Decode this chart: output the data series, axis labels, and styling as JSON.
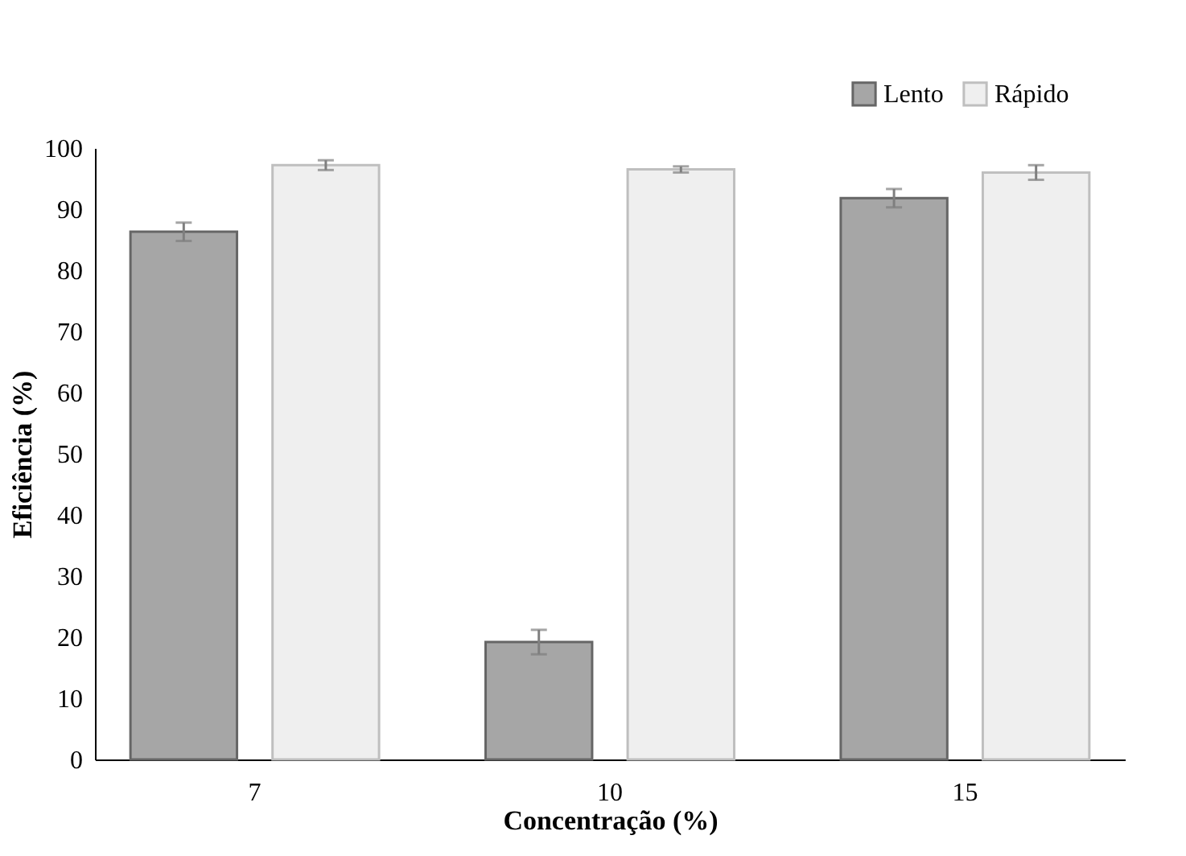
{
  "chart_data": {
    "type": "bar",
    "xlabel": "Concentração (%)",
    "ylabel": "Eficiência (%)",
    "categories": [
      "7",
      "10",
      "15"
    ],
    "series": [
      {
        "name": "Lento",
        "color": "#a6a6a6",
        "values": [
          86.3,
          19.2,
          91.8
        ],
        "errors": [
          1.5,
          2.0,
          1.5
        ]
      },
      {
        "name": "Rápido",
        "color": "#efefef",
        "values": [
          97.2,
          96.5,
          96.0
        ],
        "errors": [
          0.8,
          0.5,
          1.2
        ]
      }
    ],
    "ylim": [
      0,
      100
    ],
    "yticks": [
      0,
      10,
      20,
      30,
      40,
      50,
      60,
      70,
      80,
      90,
      100
    ],
    "grid": false,
    "legend": "top right"
  }
}
